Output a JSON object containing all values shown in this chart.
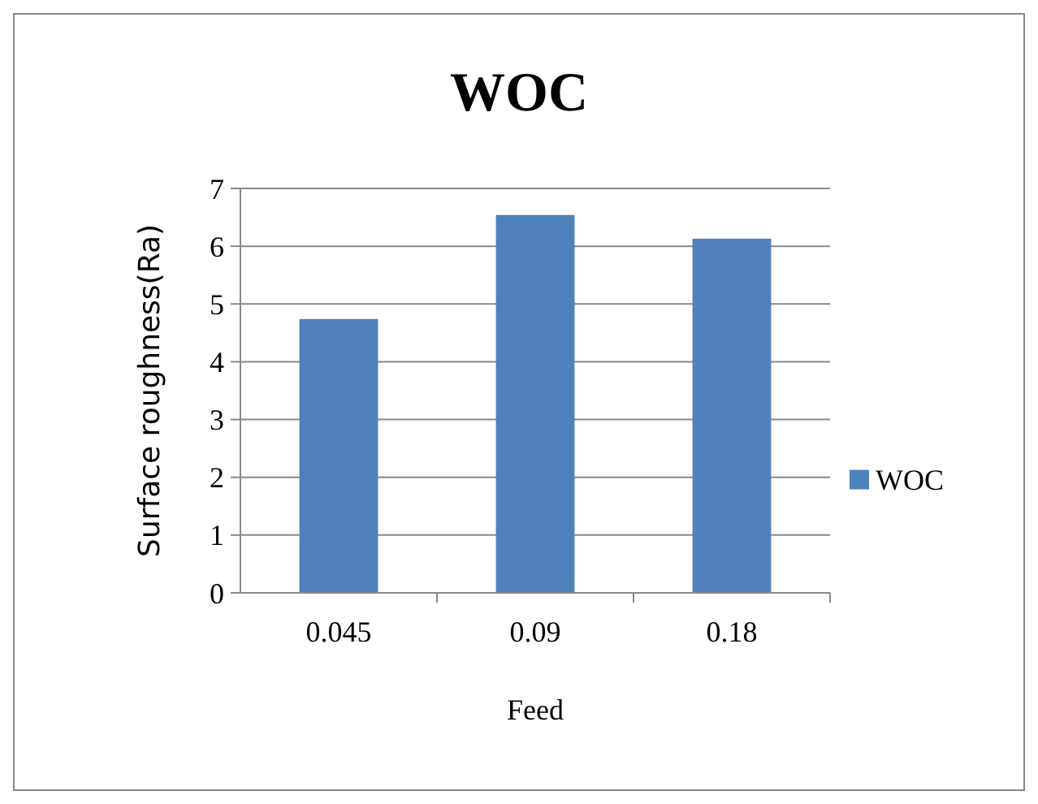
{
  "chart_data": {
    "type": "bar",
    "title": "WOC",
    "xlabel": "Feed",
    "ylabel": "Surface roughness(Ra)",
    "categories": [
      "0.045",
      "0.09",
      "0.18"
    ],
    "series": [
      {
        "name": "WOC",
        "color": "#4f81bd",
        "values": [
          4.74,
          6.54,
          6.13
        ]
      }
    ],
    "ylim": [
      0,
      7
    ],
    "yticks": [
      0,
      1,
      2,
      3,
      4,
      5,
      6,
      7
    ],
    "grid": "y",
    "legend": "right"
  }
}
